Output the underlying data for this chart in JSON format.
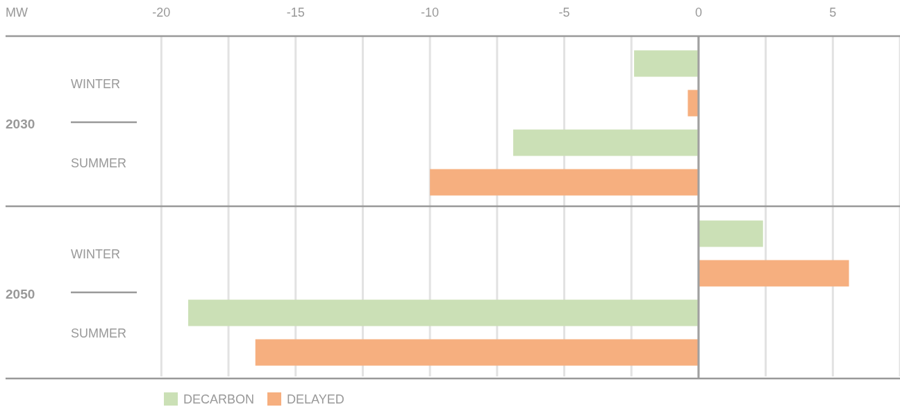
{
  "chart_data": {
    "type": "bar",
    "orientation": "horizontal",
    "xlabel": "MW",
    "categories": [
      "WINTER",
      "SUMMER",
      "WINTER",
      "SUMMER"
    ],
    "annotations": [
      "2030",
      "2050"
    ],
    "series": [
      {
        "name": "DECARBON",
        "color": "#cbe0b6",
        "values": [
          -2.4,
          -6.9,
          2.4,
          -19.0
        ]
      },
      {
        "name": "DELAYED",
        "color": "#f6af7f",
        "values": [
          -0.4,
          -10.0,
          5.6,
          -16.5
        ]
      }
    ],
    "xlim": [
      -25.8,
      7.5
    ],
    "xticks": [
      -20,
      {
        "value": -17.5,
        "label": null
      },
      -15,
      {
        "value": -12.5,
        "label": null
      },
      -10,
      {
        "value": -7.5,
        "label": null
      },
      -5,
      {
        "value": -2.5,
        "label": null
      },
      0,
      {
        "value": 2.5,
        "label": null
      },
      5,
      {
        "value": 7.5,
        "label": null
      }
    ],
    "grid": "x",
    "legend": "bottom"
  }
}
